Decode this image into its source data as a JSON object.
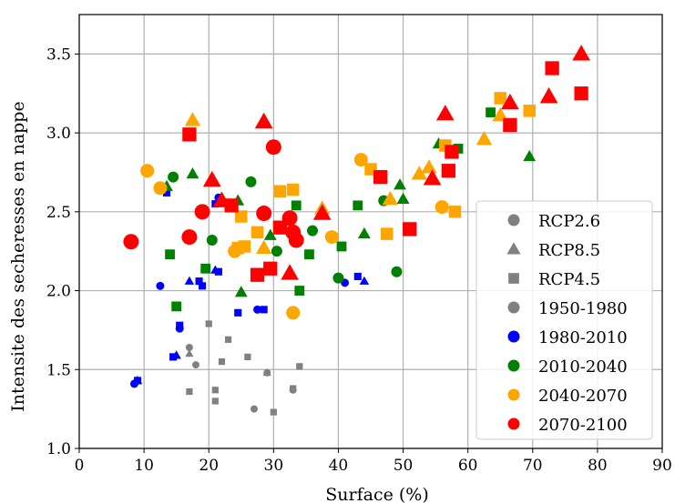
{
  "chart_data": {
    "type": "scatter",
    "title": "",
    "xlabel": "Surface (%)",
    "ylabel": "Intensite des secheresses en nappe",
    "xlim": [
      0,
      90
    ],
    "ylim": [
      1.0,
      3.75
    ],
    "xticks": [
      "0",
      "10",
      "20",
      "30",
      "40",
      "50",
      "60",
      "70",
      "80",
      "90"
    ],
    "yticks": [
      "1.0",
      "1.5",
      "2.0",
      "2.5",
      "3.0",
      "3.5"
    ],
    "grid": true,
    "legend_position": "lower-right",
    "marker_size_encodes": "period (later periods drawn larger)",
    "legend": [
      {
        "label": "RCP2.6",
        "marker": "circle",
        "color": "#808080"
      },
      {
        "label": "RCP8.5",
        "marker": "triangle",
        "color": "#808080"
      },
      {
        "label": "RCP4.5",
        "marker": "square",
        "color": "#808080"
      },
      {
        "label": "1950-1980",
        "marker": "circle",
        "color": "#808080"
      },
      {
        "label": "1980-2010",
        "marker": "circle",
        "color": "#0000ff"
      },
      {
        "label": "2010-2040",
        "marker": "circle",
        "color": "#008000"
      },
      {
        "label": "2040-2070",
        "marker": "circle",
        "color": "#ffa500"
      },
      {
        "label": "2070-2100",
        "marker": "circle",
        "color": "#ff0000"
      }
    ],
    "series": [
      {
        "period": "1950-1980",
        "color": "#808080",
        "circles": [
          [
            17,
            1.64
          ],
          [
            18,
            1.53
          ],
          [
            27,
            1.25
          ],
          [
            29,
            1.48
          ],
          [
            33,
            1.37
          ]
        ],
        "triangles": [
          [
            17,
            1.6
          ],
          [
            29,
            1.48
          ]
        ],
        "squares": [
          [
            17,
            1.36
          ],
          [
            20,
            1.79
          ],
          [
            21,
            1.37
          ],
          [
            21,
            1.3
          ],
          [
            22,
            1.55
          ],
          [
            23,
            1.69
          ],
          [
            26,
            1.58
          ],
          [
            30,
            1.23
          ],
          [
            33,
            1.38
          ],
          [
            34,
            1.52
          ]
        ]
      },
      {
        "period": "1980-2010",
        "color": "#0000ff",
        "circles": [
          [
            8.5,
            1.41
          ],
          [
            12.5,
            2.03
          ],
          [
            15.5,
            1.76
          ],
          [
            21.5,
            2.59
          ],
          [
            27.5,
            1.88
          ],
          [
            41,
            2.05
          ]
        ],
        "triangles": [
          [
            9,
            1.43
          ],
          [
            15,
            1.59
          ],
          [
            17,
            2.06
          ],
          [
            21,
            2.13
          ],
          [
            44,
            2.06
          ]
        ],
        "squares": [
          [
            9,
            1.43
          ],
          [
            13.5,
            2.62
          ],
          [
            14.5,
            1.58
          ],
          [
            15.5,
            1.78
          ],
          [
            18.5,
            2.06
          ],
          [
            19,
            2.03
          ],
          [
            21,
            2.55
          ],
          [
            21.5,
            2.12
          ],
          [
            24.5,
            1.86
          ],
          [
            28.5,
            1.88
          ],
          [
            43,
            2.09
          ]
        ]
      },
      {
        "period": "2010-2040",
        "color": "#008000",
        "circles": [
          [
            14.5,
            2.72
          ],
          [
            20.5,
            2.32
          ],
          [
            26.5,
            2.69
          ],
          [
            30.5,
            2.25
          ],
          [
            36,
            2.38
          ],
          [
            40,
            2.08
          ],
          [
            47,
            2.57
          ],
          [
            49,
            2.12
          ]
        ],
        "triangles": [
          [
            13.5,
            2.66
          ],
          [
            17.5,
            2.74
          ],
          [
            24.5,
            2.57
          ],
          [
            25,
            1.99
          ],
          [
            29.5,
            2.35
          ],
          [
            44,
            2.36
          ],
          [
            49.5,
            2.67
          ],
          [
            50,
            2.58
          ],
          [
            55.5,
            2.93
          ],
          [
            69.5,
            2.85
          ]
        ],
        "squares": [
          [
            14,
            2.23
          ],
          [
            15,
            1.9
          ],
          [
            19.5,
            2.14
          ],
          [
            33.5,
            2.54
          ],
          [
            34,
            2.0
          ],
          [
            35.5,
            2.23
          ],
          [
            40.5,
            2.28
          ],
          [
            43,
            2.54
          ],
          [
            58.5,
            2.9
          ],
          [
            63.5,
            3.13
          ]
        ]
      },
      {
        "period": "2040-2070",
        "color": "#ffa500",
        "circles": [
          [
            10.5,
            2.76
          ],
          [
            12.5,
            2.65
          ],
          [
            24,
            2.25
          ],
          [
            33,
            1.86
          ],
          [
            39,
            2.34
          ],
          [
            43.5,
            2.83
          ],
          [
            56,
            2.53
          ]
        ],
        "triangles": [
          [
            17.5,
            3.08
          ],
          [
            28.5,
            2.27
          ],
          [
            37.5,
            2.52
          ],
          [
            48,
            2.58
          ],
          [
            52.5,
            2.74
          ],
          [
            54,
            2.78
          ],
          [
            62.5,
            2.96
          ],
          [
            65,
            3.11
          ]
        ],
        "squares": [
          [
            24.5,
            2.27
          ],
          [
            25,
            2.47
          ],
          [
            25.5,
            2.28
          ],
          [
            27.5,
            2.37
          ],
          [
            31,
            2.63
          ],
          [
            33,
            2.64
          ],
          [
            45,
            2.77
          ],
          [
            47.5,
            2.36
          ],
          [
            56.5,
            2.92
          ],
          [
            58,
            2.5
          ],
          [
            65,
            3.22
          ],
          [
            69.5,
            3.14
          ]
        ]
      },
      {
        "period": "2070-2100",
        "color": "#ff0000",
        "circles": [
          [
            8,
            2.31
          ],
          [
            17,
            2.34
          ],
          [
            19,
            2.5
          ],
          [
            28.5,
            2.49
          ],
          [
            30,
            2.91
          ],
          [
            32.5,
            2.46
          ],
          [
            33,
            2.37
          ],
          [
            33.5,
            2.32
          ]
        ],
        "triangles": [
          [
            20.5,
            2.7
          ],
          [
            22,
            2.57
          ],
          [
            28.5,
            3.07
          ],
          [
            32.5,
            2.11
          ],
          [
            37.5,
            2.49
          ],
          [
            54.5,
            2.71
          ],
          [
            56.5,
            3.12
          ],
          [
            66.5,
            3.19
          ],
          [
            72.5,
            3.23
          ],
          [
            77.5,
            3.5
          ]
        ],
        "squares": [
          [
            17,
            2.99
          ],
          [
            23.5,
            2.54
          ],
          [
            27.5,
            2.1
          ],
          [
            29.5,
            2.14
          ],
          [
            31,
            2.4
          ],
          [
            46.5,
            2.72
          ],
          [
            51,
            2.39
          ],
          [
            57,
            2.76
          ],
          [
            57.5,
            2.88
          ],
          [
            66.5,
            3.05
          ],
          [
            73,
            3.41
          ],
          [
            77.5,
            3.25
          ]
        ]
      }
    ]
  }
}
